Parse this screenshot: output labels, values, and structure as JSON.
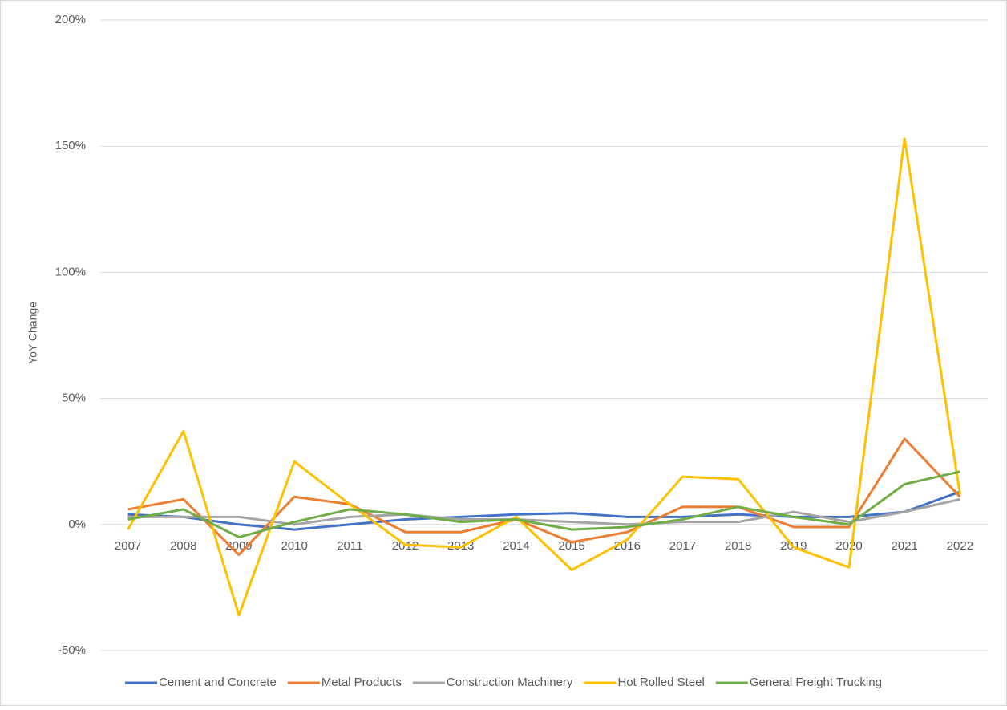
{
  "chart_data": {
    "type": "line",
    "y_label": "YoY Change",
    "categories": [
      "2007",
      "2008",
      "2009",
      "2010",
      "2011",
      "2012",
      "2013",
      "2014",
      "2015",
      "2016",
      "2017",
      "2018",
      "2019",
      "2020",
      "2021",
      "2022"
    ],
    "series": [
      {
        "name": "Cement and Concrete",
        "color": "#4472c4",
        "values": [
          4,
          3,
          0,
          -2,
          0,
          2,
          3,
          4,
          4.5,
          3,
          3,
          4,
          3,
          3,
          5,
          13
        ]
      },
      {
        "name": "Metal Products",
        "color": "#ed7d31",
        "values": [
          6,
          10,
          -12,
          11,
          8,
          -3,
          -3,
          2,
          -7,
          -3,
          7,
          7,
          -1,
          -1,
          34,
          11
        ]
      },
      {
        "name": "Construction Machinery",
        "color": "#a5a5a5",
        "values": [
          3,
          3,
          3,
          0,
          3,
          4,
          2,
          2,
          1,
          0,
          1,
          1,
          5,
          1,
          5,
          10
        ]
      },
      {
        "name": "Hot Rolled Steel",
        "color": "#ffc000",
        "values": [
          -2,
          37,
          -36,
          25,
          8,
          -8,
          -9,
          3,
          -18,
          -6,
          19,
          18,
          -9,
          -17,
          153,
          12
        ]
      },
      {
        "name": "General Freight Trucking",
        "color": "#70ad47",
        "values": [
          2,
          6,
          -5,
          1,
          6,
          4,
          1,
          2,
          -2,
          -1,
          2,
          7,
          3,
          0,
          16,
          21
        ]
      }
    ],
    "ylim": [
      -50,
      200
    ],
    "yticks": [
      {
        "value": -50,
        "label": "-50%"
      },
      {
        "value": 0,
        "label": "0%"
      },
      {
        "value": 50,
        "label": "50%"
      },
      {
        "value": 100,
        "label": "100%"
      },
      {
        "value": 150,
        "label": "150%"
      },
      {
        "value": 200,
        "label": "200%"
      }
    ],
    "grid": true,
    "legend": "bottom"
  }
}
